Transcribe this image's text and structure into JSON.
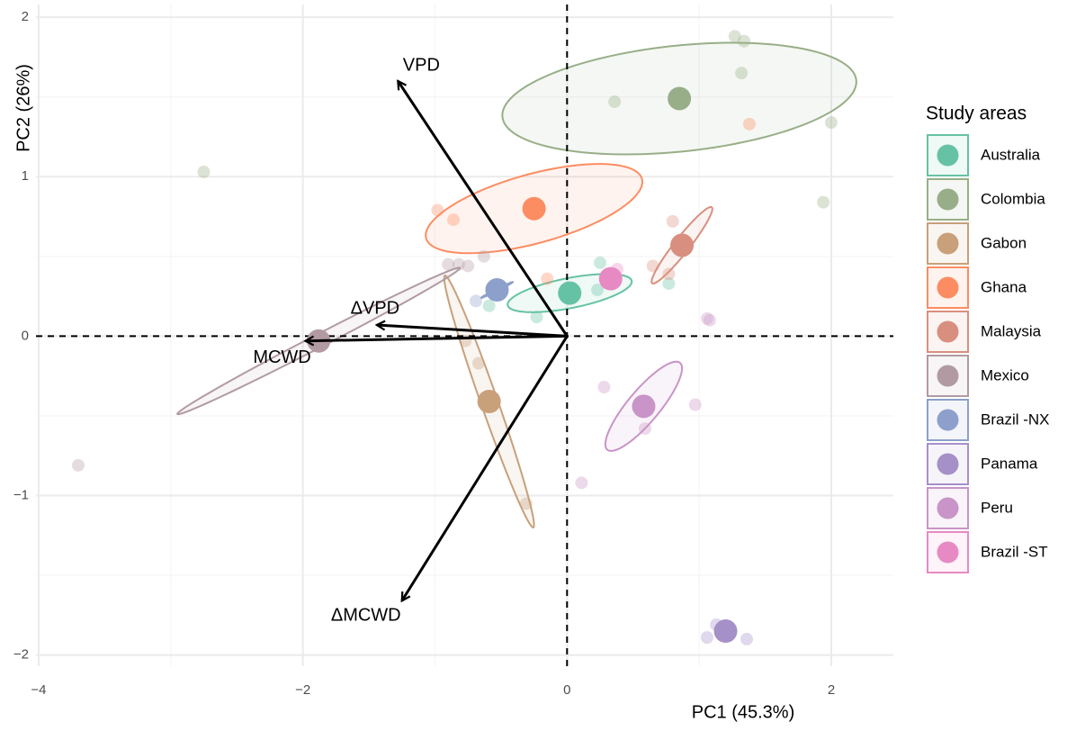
{
  "chart_data": {
    "type": "biplot",
    "x_label": "PC1 (45.3%)",
    "y_label": "PC2 (26%)",
    "legend_title": "Study areas",
    "xlim": [
      -4.02,
      2.47
    ],
    "ylim": [
      -2.07,
      2.08
    ],
    "xticks": [
      {
        "value": -4,
        "label": "−4"
      },
      {
        "value": -2,
        "label": "−2"
      },
      0,
      2
    ],
    "yticks": [
      {
        "value": -2,
        "label": "−2"
      },
      {
        "value": -1,
        "label": "−1"
      },
      0,
      1,
      2
    ],
    "grid": true,
    "reference_lines": {
      "x": 0,
      "y": 0
    },
    "series": [
      {
        "name": "Australia",
        "color": "#66c2a5",
        "centroid": {
          "x": 0.02,
          "y": 0.27
        },
        "points": {
          "x": [
            -0.59,
            -0.23,
            0.23,
            0.25,
            0.77
          ],
          "y": [
            0.19,
            0.12,
            0.29,
            0.46,
            0.33
          ]
        },
        "ellipse": {
          "rx": 0.47,
          "ry": 0.12,
          "r": 0.6
        }
      },
      {
        "name": "Colombia",
        "color": "#98ae88",
        "centroid": {
          "x": 0.85,
          "y": 1.49
        },
        "points": {
          "x": [
            -2.75,
            0.36,
            1.27,
            1.34,
            1.32,
            2.0,
            1.94
          ],
          "y": [
            1.03,
            1.47,
            1.88,
            1.85,
            1.65,
            1.34,
            0.84
          ]
        },
        "ellipse": {
          "rx": 1.34,
          "ry": 0.35,
          "r": 0.3
        }
      },
      {
        "name": "Gabon",
        "color": "#c8a07a",
        "centroid": {
          "x": -0.59,
          "y": -0.41
        },
        "points": {
          "x": [
            -0.77,
            -0.67,
            -0.31
          ],
          "y": [
            -0.03,
            -0.17,
            -1.05
          ]
        },
        "ellipse": {
          "rx": 0.34,
          "ry": 0.79,
          "r": -0.98
        }
      },
      {
        "name": "Ghana",
        "color": "#fc8d62",
        "centroid": {
          "x": -0.25,
          "y": 0.8
        },
        "points": {
          "x": [
            -0.98,
            -0.86,
            -0.15,
            1.38
          ],
          "y": [
            0.79,
            0.73,
            0.36,
            1.33
          ]
        },
        "ellipse": {
          "rx": 0.82,
          "ry": 0.28,
          "r": 0.6
        }
      },
      {
        "name": "Malaysia",
        "color": "#d98f7f",
        "centroid": {
          "x": 0.87,
          "y": 0.57
        },
        "points": {
          "x": [
            0.8,
            0.65,
            0.77
          ],
          "y": [
            0.72,
            0.44,
            0.39
          ]
        },
        "ellipse": {
          "rx": 0.23,
          "ry": 0.24,
          "r": 0.95
        }
      },
      {
        "name": "Mexico",
        "color": "#b29aa3",
        "centroid": {
          "x": -1.88,
          "y": -0.03
        },
        "points": {
          "x": [
            -3.7,
            -0.82,
            -0.75,
            -0.9,
            -0.63
          ],
          "y": [
            -0.81,
            0.45,
            0.44,
            0.45,
            0.5
          ]
        },
        "ellipse": {
          "rx": 1.07,
          "ry": 0.46,
          "r": 0.995
        }
      },
      {
        "name": "Brazil -NX",
        "color": "#8da0cb",
        "centroid": {
          "x": -0.53,
          "y": 0.29
        },
        "points": {
          "x": [
            -0.69
          ],
          "y": [
            0.22
          ]
        },
        "ellipse": {
          "rx": 0.12,
          "ry": 0.05,
          "r": 0.99
        }
      },
      {
        "name": "Panama",
        "color": "#a690c8",
        "centroid": {
          "x": 1.2,
          "y": -1.85
        },
        "points": {
          "x": [
            1.13,
            1.06,
            1.36
          ],
          "y": [
            -1.81,
            -1.89,
            -1.9
          ]
        },
        "ellipse": null
      },
      {
        "name": "Peru",
        "color": "#c994c7",
        "centroid": {
          "x": 0.58,
          "y": -0.44
        },
        "points": {
          "x": [
            0.28,
            0.59,
            0.97,
            1.06,
            1.08,
            0.11
          ],
          "y": [
            -0.32,
            -0.58,
            -0.43,
            0.11,
            0.1,
            -0.92
          ]
        },
        "ellipse": {
          "rx": 0.29,
          "ry": 0.28,
          "r": 0.85
        }
      },
      {
        "name": "Brazil -ST",
        "color": "#e78ac3",
        "centroid": {
          "x": 0.33,
          "y": 0.36
        },
        "points": {
          "x": [
            0.38
          ],
          "y": [
            0.42
          ]
        },
        "ellipse": null
      }
    ],
    "loadings": [
      {
        "name": "VPD",
        "x": -1.28,
        "y": 1.6
      },
      {
        "name": "ΔVPD",
        "x": -1.44,
        "y": 0.07
      },
      {
        "name": "MCWD",
        "x": -1.98,
        "y": -0.03
      },
      {
        "name": "ΔMCWD",
        "x": -1.25,
        "y": -1.66
      }
    ]
  }
}
